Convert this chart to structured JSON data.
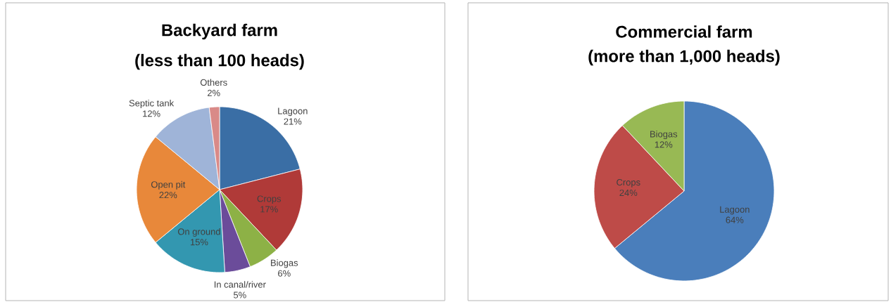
{
  "chart_data": [
    {
      "type": "pie",
      "title": "Backyard farm",
      "subtitle": "(less than 100 heads)",
      "categories": [
        "Lagoon",
        "Crops",
        "Biogas",
        "In canal/river",
        "On ground",
        "Open pit",
        "Septic tank",
        "Others"
      ],
      "values": [
        21,
        17,
        6,
        5,
        15,
        22,
        12,
        2
      ],
      "value_labels": [
        "21%",
        "17%",
        "6%",
        "5%",
        "15%",
        "22%",
        "12%",
        "2%"
      ],
      "colors": [
        "#3a6ea5",
        "#b03a38",
        "#8db146",
        "#6b4c9a",
        "#3397b0",
        "#e8883a",
        "#9fb4d8",
        "#d98a88"
      ]
    },
    {
      "type": "pie",
      "title": "Commercial farm",
      "subtitle": "(more than 1,000 heads)",
      "categories": [
        "Lagoon",
        "Crops",
        "Biogas"
      ],
      "values": [
        64,
        24,
        12
      ],
      "value_labels": [
        "64%",
        "24%",
        "12%"
      ],
      "colors": [
        "#4a7ebb",
        "#be4b48",
        "#98b954"
      ]
    }
  ]
}
